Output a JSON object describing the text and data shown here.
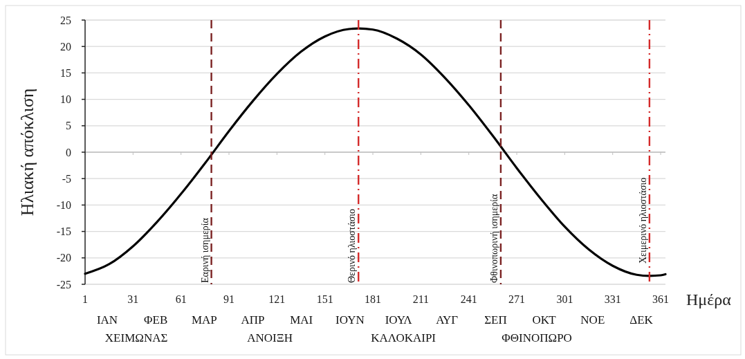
{
  "chart_data": {
    "type": "line",
    "xlabel": "Ημέρα",
    "ylabel": "Ηλιακή απόκλιση",
    "x": [
      1,
      16,
      31,
      46,
      61,
      76,
      91,
      106,
      121,
      136,
      151,
      166,
      172,
      181,
      196,
      211,
      226,
      241,
      256,
      271,
      286,
      301,
      316,
      331,
      346,
      354,
      361,
      364
    ],
    "series": [
      {
        "color": "#000000",
        "values": [
          -23.0,
          -21.2,
          -17.8,
          -13.2,
          -7.9,
          -2.1,
          4.0,
          9.7,
          14.8,
          19.0,
          21.9,
          23.3,
          23.4,
          23.2,
          21.5,
          18.5,
          14.1,
          8.9,
          3.1,
          -3.0,
          -8.8,
          -14.1,
          -18.4,
          -21.5,
          -23.2,
          -23.4,
          -23.3,
          -23.1
        ]
      }
    ],
    "xlim": [
      1,
      364
    ],
    "xticks": [
      1,
      31,
      61,
      91,
      121,
      151,
      181,
      211,
      241,
      271,
      301,
      331,
      361
    ],
    "ylim": [
      -25,
      25
    ],
    "yticks": [
      -25,
      -20,
      -15,
      -10,
      -5,
      0,
      5,
      10,
      15,
      20,
      25
    ],
    "grid": "y",
    "marker": "none",
    "line_style": "solid",
    "ref_lines": [
      {
        "axis": "x",
        "value": 80,
        "label": "Εαρινή ισημερία",
        "color": "#7b2222",
        "line_style": "dashed"
      },
      {
        "axis": "x",
        "value": 172,
        "label": "Θερινό ηλιοστάσιο",
        "color": "#d42a2a",
        "line_style": "dashdot"
      },
      {
        "axis": "x",
        "value": 261,
        "label": "Φθινοπωρινή ισημερία",
        "color": "#7b2222",
        "line_style": "dashed"
      },
      {
        "axis": "x",
        "value": 354,
        "label": "Χειμερινό ηλιοστάσιο",
        "color": "#d42a2a",
        "line_style": "dashdot"
      }
    ],
    "annotations": [
      "ΙΑΝ",
      "ΦΕΒ",
      "ΜΑΡ",
      "ΑΠΡ",
      "ΜΑΙ",
      "ΙΟΥΝ",
      "ΙΟΥΛ",
      "ΑΥΓ",
      "ΣΕΠ",
      "ΟΚΤ",
      "ΝΟΕ",
      "ΔΕΚ",
      "ΧΕΙΜΩΝΑΣ",
      "ΑΝΟΙΞΗ",
      "ΚΑΛΟΚΑΙΡΙ",
      "ΦΘΙΝΟΠΩΡΟ"
    ]
  }
}
